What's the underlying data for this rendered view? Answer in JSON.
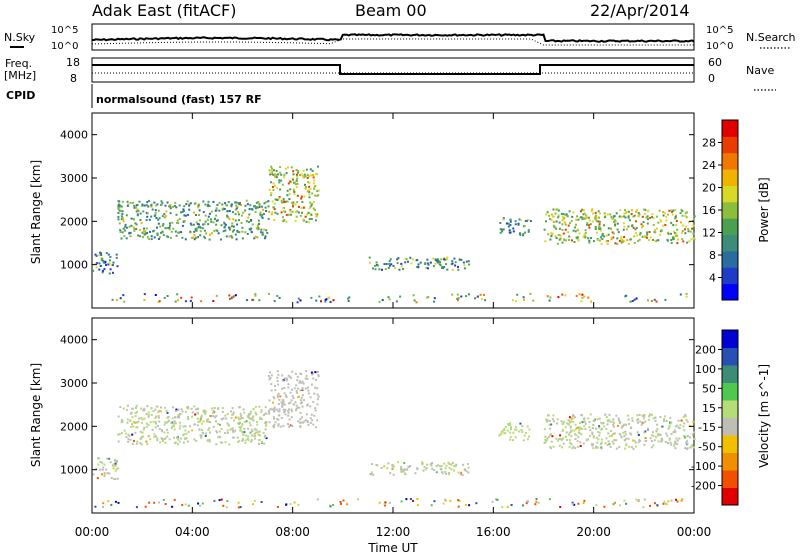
{
  "header": {
    "station": "Adak East (fitACF)",
    "beam": "Beam 00",
    "date": "22/Apr/2014"
  },
  "status_panels": {
    "nsky_label": "N.Sky",
    "nsky_ticks": [
      "10^5",
      "10^0"
    ],
    "nsearch_label": "N.Search",
    "nsearch_ticks": [
      "10^5",
      "10^0"
    ],
    "freq_label": "Freq.",
    "freq_unit": "[MHz]",
    "freq_ticks": [
      "18",
      "8"
    ],
    "nave_label": "Nave",
    "nave_ticks": [
      "60",
      "0"
    ],
    "cpid_label": "CPID",
    "cpid_text": "normalsound (fast) 157 RF"
  },
  "colorbars": {
    "power": {
      "label": "Power [dB]",
      "ticks": [
        "28",
        "24",
        "20",
        "16",
        "12",
        "8",
        "4"
      ],
      "colors": [
        "#0000ff",
        "#1e3cc8",
        "#2a6ca0",
        "#3c8c78",
        "#4aa050",
        "#8cbe3c",
        "#d8d828",
        "#f0b400",
        "#f07800",
        "#e83c00",
        "#e00000"
      ]
    },
    "velocity": {
      "label": "Velocity [m s^-1]",
      "ticks": [
        "200",
        "100",
        "50",
        "15",
        "-15",
        "-50",
        "-100",
        "-200"
      ],
      "colors": [
        "#e00000",
        "#f05000",
        "#f09000",
        "#f0c000",
        "#bebeb4",
        "#b4dc78",
        "#50c850",
        "#3c8c78",
        "#2850b4",
        "#0000d0"
      ]
    }
  },
  "chart_data": {
    "type": "heatmap",
    "title": "Adak East (fitACF) Beam 00 22/Apr/2014",
    "xlabel": "Time UT",
    "x_tick_labels": [
      "00:00",
      "04:00",
      "08:00",
      "12:00",
      "16:00",
      "20:00",
      "00:00"
    ],
    "xlim_hours": [
      0,
      24
    ],
    "ylabel": "Slant Range [km]",
    "y_tick_labels": [
      "1000",
      "2000",
      "3000",
      "4000"
    ],
    "ylim_km": [
      0,
      4500
    ],
    "grid": false,
    "series": [
      {
        "name": "Power [dB]",
        "echo_bands": [
          {
            "t": [
              0.0,
              1.0
            ],
            "range_km": [
              800,
              1300
            ],
            "value": 6
          },
          {
            "t": [
              1.0,
              7.0
            ],
            "range_km": [
              1600,
              2500
            ],
            "value": 10
          },
          {
            "t": [
              7.0,
              9.0
            ],
            "range_km": [
              2000,
              3300
            ],
            "value": 14
          },
          {
            "t": [
              11.0,
              15.0
            ],
            "range_km": [
              900,
              1200
            ],
            "value": 8
          },
          {
            "t": [
              16.2,
              17.5
            ],
            "range_km": [
              1700,
              2100
            ],
            "value": 8
          },
          {
            "t": [
              18.0,
              24.0
            ],
            "range_km": [
              1500,
              2300
            ],
            "value": 14
          }
        ]
      },
      {
        "name": "Velocity [m s^-1]",
        "echo_bands": [
          {
            "t": [
              0.0,
              1.0
            ],
            "range_km": [
              800,
              1300
            ],
            "value": 0
          },
          {
            "t": [
              1.0,
              7.0
            ],
            "range_km": [
              1600,
              2500
            ],
            "value": 0
          },
          {
            "t": [
              7.0,
              9.0
            ],
            "range_km": [
              2000,
              3300
            ],
            "value": -20
          },
          {
            "t": [
              11.0,
              15.0
            ],
            "range_km": [
              900,
              1200
            ],
            "value": 0
          },
          {
            "t": [
              16.2,
              17.5
            ],
            "range_km": [
              1700,
              2100
            ],
            "value": 20
          },
          {
            "t": [
              18.0,
              24.0
            ],
            "range_km": [
              1500,
              2300
            ],
            "value": 0
          }
        ]
      }
    ]
  }
}
